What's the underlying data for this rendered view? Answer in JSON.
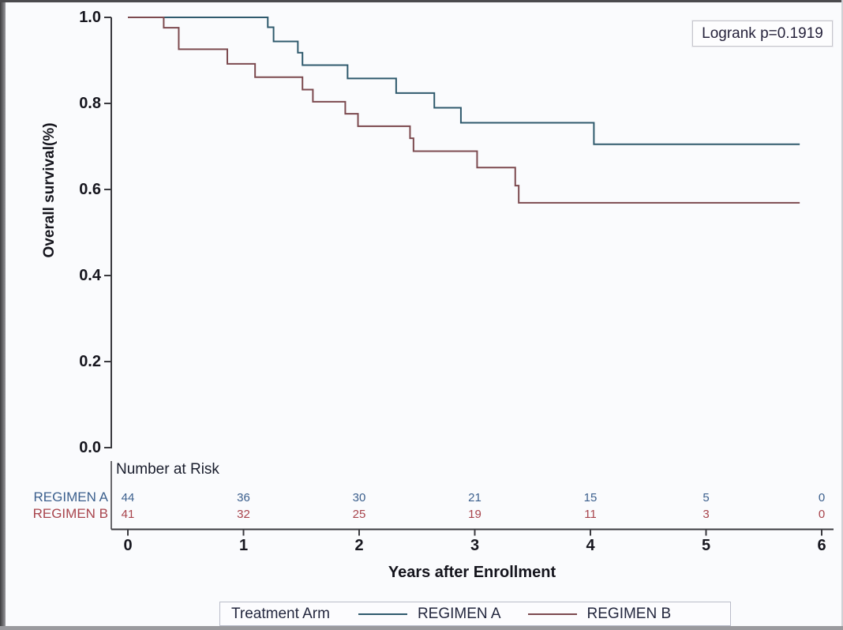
{
  "chart_data": {
    "type": "line",
    "subtype": "kaplan-meier-step",
    "title": "",
    "xlabel": "Years after Enrollment",
    "ylabel": "Overall survival(%)",
    "xlim": [
      0,
      6
    ],
    "ylim": [
      0,
      1
    ],
    "xticks": [
      "0",
      "1",
      "2",
      "3",
      "4",
      "5",
      "6"
    ],
    "yticks": [
      "0.0",
      "0.2",
      "0.4",
      "0.6",
      "0.8",
      "1.0"
    ],
    "grid": false,
    "legend_position": "bottom",
    "legend_title": "Treatment Arm",
    "annotation": "Logrank p=0.1919",
    "axis_color": "#3a3a3f",
    "series": [
      {
        "name": "REGIMEN A",
        "color": "#2f5a6d",
        "text_color": "#3b5f8d",
        "steps": [
          [
            0,
            1.0
          ],
          [
            1.21,
            0.977
          ],
          [
            1.26,
            0.944
          ],
          [
            1.47,
            0.918
          ],
          [
            1.51,
            0.889
          ],
          [
            1.9,
            0.858
          ],
          [
            2.32,
            0.824
          ],
          [
            2.65,
            0.79
          ],
          [
            2.88,
            0.755
          ],
          [
            4.03,
            0.705
          ],
          [
            5.81,
            0.705
          ]
        ]
      },
      {
        "name": "REGIMEN B",
        "color": "#7c4a4f",
        "text_color": "#a8444c",
        "steps": [
          [
            0,
            1.0
          ],
          [
            0.31,
            0.976
          ],
          [
            0.44,
            0.926
          ],
          [
            0.86,
            0.892
          ],
          [
            1.1,
            0.861
          ],
          [
            1.51,
            0.832
          ],
          [
            1.6,
            0.804
          ],
          [
            1.88,
            0.776
          ],
          [
            1.99,
            0.747
          ],
          [
            2.44,
            0.719
          ],
          [
            2.47,
            0.689
          ],
          [
            3.02,
            0.651
          ],
          [
            3.35,
            0.609
          ],
          [
            3.38,
            0.569
          ],
          [
            5.81,
            0.569
          ]
        ]
      }
    ],
    "number_at_risk": {
      "header": "Number at Risk",
      "times": [
        "0",
        "1",
        "2",
        "3",
        "4",
        "5",
        "6"
      ],
      "rows": [
        {
          "name": "REGIMEN A",
          "values": [
            "44",
            "36",
            "30",
            "21",
            "15",
            "5",
            "0"
          ]
        },
        {
          "name": "REGIMEN B",
          "values": [
            "41",
            "32",
            "25",
            "19",
            "11",
            "3",
            "0"
          ]
        }
      ]
    }
  }
}
